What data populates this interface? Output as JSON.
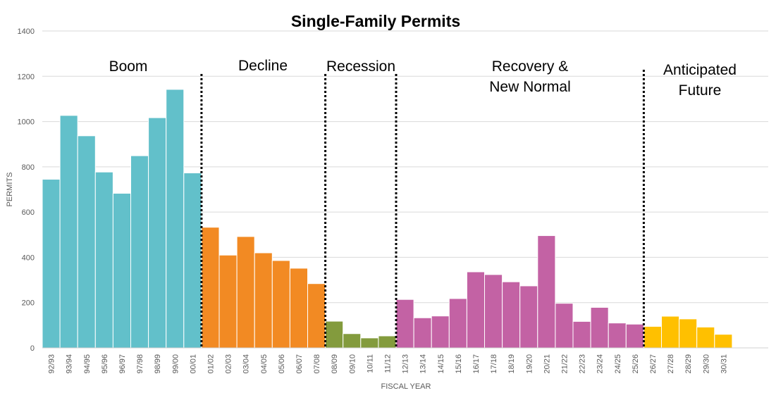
{
  "chart_data": {
    "type": "bar",
    "title": "Single-Family Permits",
    "xlabel": "FISCAL YEAR",
    "ylabel": "PERMITS",
    "ylim": [
      0,
      1400
    ],
    "yticks": [
      0,
      200,
      400,
      600,
      800,
      1000,
      1200,
      1400
    ],
    "grid": true,
    "legend": "none",
    "categories": [
      "92/93",
      "93/94",
      "94/95",
      "95/96",
      "96/97",
      "97/98",
      "98/99",
      "99/00",
      "00/01",
      "01/02",
      "02/03",
      "03/04",
      "04/05",
      "05/06",
      "06/07",
      "07/08",
      "08/09",
      "09/10",
      "10/11",
      "11/12",
      "12/13",
      "13/14",
      "14/15",
      "15/16",
      "16/17",
      "17/18",
      "18/19",
      "19/20",
      "20/21",
      "21/22",
      "22/23",
      "23/24",
      "24/25",
      "25/26",
      "26/27",
      "27/28",
      "28/29",
      "29/30",
      "30/31"
    ],
    "values": [
      745,
      1027,
      937,
      777,
      683,
      849,
      1017,
      1142,
      773,
      533,
      410,
      492,
      420,
      386,
      352,
      284,
      118,
      63,
      44,
      53,
      214,
      133,
      141,
      218,
      336,
      324,
      292,
      274,
      496,
      197,
      117,
      179,
      110,
      105,
      95,
      140,
      128,
      92,
      60
    ],
    "periods": [
      {
        "label": "Boom",
        "start": 0,
        "end": 8,
        "color": "#62C0CA"
      },
      {
        "label": "Decline",
        "start": 9,
        "end": 15,
        "color": "#F28A23"
      },
      {
        "label": "Recession",
        "start": 16,
        "end": 19,
        "color": "#839B3D"
      },
      {
        "label": "Recovery & New Normal",
        "start": 20,
        "end": 33,
        "color": "#C362A4"
      },
      {
        "label": "Anticipated Future",
        "start": 34,
        "end": 38,
        "color": "#FFC000"
      }
    ],
    "divider_labels": [
      {
        "lines": [
          "Boom"
        ]
      },
      {
        "lines": [
          "Decline"
        ]
      },
      {
        "lines": [
          "Recession"
        ]
      },
      {
        "lines": [
          "Recovery &",
          "New Normal"
        ]
      },
      {
        "lines": [
          "Anticipated",
          "Future"
        ]
      }
    ]
  }
}
